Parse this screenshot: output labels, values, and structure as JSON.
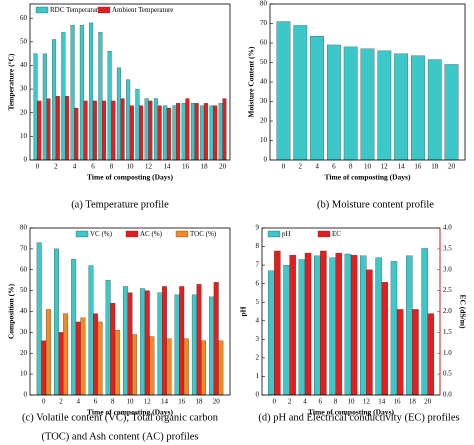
{
  "chart_data": [
    {
      "type": "bar",
      "caption": [
        "(a) Temperature profile"
      ],
      "x_label": "Time of composting (Days)",
      "y_label": "Temperature (°C)",
      "categories": [
        0,
        null,
        2,
        null,
        4,
        null,
        6,
        null,
        8,
        null,
        10,
        null,
        12,
        null,
        14,
        null,
        16,
        null,
        18,
        null,
        20
      ],
      "series": [
        {
          "name": "RDC Temperature",
          "color": "#3cc8c8",
          "values": [
            45,
            45,
            51,
            54,
            57,
            57,
            58,
            54,
            46,
            39,
            34,
            30,
            26,
            26,
            23,
            23,
            24,
            24,
            23,
            23,
            24
          ]
        },
        {
          "name": "Ambient Temperature",
          "color": "#e21e1e",
          "values": [
            25,
            26,
            27,
            27,
            22,
            25,
            25,
            25,
            25,
            26,
            23,
            23,
            25,
            23,
            22,
            24,
            26,
            24,
            24,
            23,
            26
          ]
        }
      ],
      "ylim": [
        0,
        66
      ],
      "yticks": [
        0,
        10,
        20,
        30,
        40,
        50,
        60
      ],
      "legend": "top-left"
    },
    {
      "type": "bar",
      "caption": [
        "(b) Moisture content profile"
      ],
      "x_label": "Time of composting (Days)",
      "y_label": "Moisture Content (%)",
      "categories": [
        0,
        2,
        4,
        6,
        8,
        10,
        12,
        14,
        16,
        18,
        20
      ],
      "values": [
        71,
        69,
        63.5,
        59,
        58,
        57,
        56,
        54.5,
        53.5,
        51.5,
        49
      ],
      "color": "#3cc8c8",
      "ylim": [
        0,
        80
      ],
      "yticks": [
        0,
        10,
        20,
        30,
        40,
        50,
        60,
        70,
        80
      ]
    },
    {
      "type": "bar",
      "caption": [
        "(c) Volatile content (VC), Total organic carbon",
        "(TOC) and Ash content (AC) profiles"
      ],
      "x_label": "Time of composting (Days)",
      "y_label": "Composition (%)",
      "categories": [
        0,
        2,
        4,
        6,
        8,
        10,
        12,
        14,
        16,
        18,
        20
      ],
      "series": [
        {
          "name": "VC (%)",
          "color": "#3cc8c8",
          "values": [
            73,
            70,
            65,
            62,
            55,
            52,
            51,
            49,
            48,
            48,
            47
          ]
        },
        {
          "name": "AC (%)",
          "color": "#e21e1e",
          "values": [
            26,
            30,
            35,
            39,
            44,
            49,
            50,
            52,
            52,
            53,
            54
          ]
        },
        {
          "name": "TOC (%)",
          "color": "#f08a24",
          "values": [
            41,
            39,
            37,
            35,
            31,
            29,
            28,
            27,
            27,
            26,
            26
          ]
        }
      ],
      "ylim": [
        0,
        80
      ],
      "yticks": [
        0,
        10,
        20,
        30,
        40,
        50,
        60,
        70,
        80
      ],
      "legend": "top-right"
    },
    {
      "type": "bar",
      "caption": [
        "(d) pH and Electrical conductivity (EC) profiles"
      ],
      "x_label": "Time of composting (Days)",
      "y_label": "pH",
      "y2_label": "EC (dS/m)",
      "y2_axis_color": "#e21e1e",
      "categories": [
        0,
        2,
        4,
        6,
        8,
        10,
        12,
        14,
        16,
        18,
        20
      ],
      "series": [
        {
          "name": "pH",
          "color": "#3cc8c8",
          "values": [
            6.7,
            7.0,
            7.3,
            7.5,
            7.4,
            7.6,
            7.5,
            7.4,
            7.2,
            7.5,
            7.9
          ]
        },
        {
          "name": "EC",
          "color": "#e21e1e",
          "axis": "y2",
          "values": [
            3.45,
            3.35,
            3.4,
            3.45,
            3.4,
            3.35,
            3.0,
            2.7,
            2.05,
            2.05,
            1.95
          ]
        }
      ],
      "ylim": [
        0,
        9
      ],
      "yticks": [
        0,
        1,
        2,
        3,
        4,
        5,
        6,
        7,
        8,
        9
      ],
      "y2lim": [
        0,
        4
      ],
      "y2ticks": [
        {
          "value": 0,
          "label": "0.0"
        },
        0.5,
        {
          "value": 1,
          "label": "1.0"
        },
        1.5,
        {
          "value": 2,
          "label": "2.0"
        },
        2.5,
        {
          "value": 3,
          "label": "3.0"
        },
        3.5,
        {
          "value": 4,
          "label": "4.0"
        }
      ],
      "legend": "top-left"
    }
  ]
}
